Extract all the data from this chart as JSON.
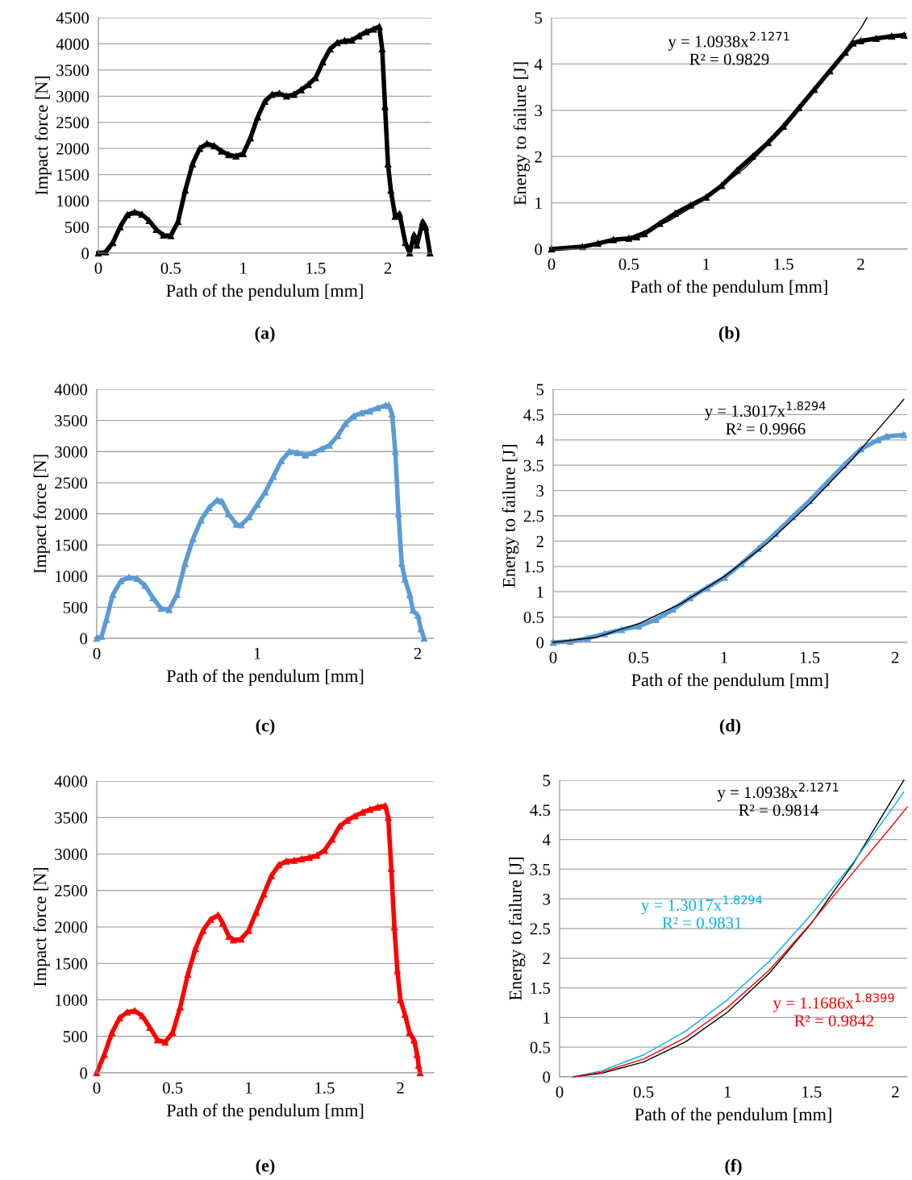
{
  "chart_data": [
    {
      "type": "line",
      "title": "(a)",
      "xlabel": "Path of the pendulum [mm]",
      "ylabel": "Impact force [N]",
      "xlim": [
        0,
        2.3
      ],
      "xticks": [
        0,
        0.5,
        1,
        1.5,
        2
      ],
      "ylim": [
        0,
        4500
      ],
      "yticks": [
        0,
        500,
        1000,
        1500,
        2000,
        2500,
        3000,
        3500,
        4000,
        4500
      ],
      "grid": "y",
      "marker": "triangle",
      "series": [
        {
          "color": "#000000",
          "x": [
            0,
            0.05,
            0.1,
            0.15,
            0.2,
            0.25,
            0.3,
            0.35,
            0.4,
            0.45,
            0.5,
            0.55,
            0.6,
            0.65,
            0.7,
            0.75,
            0.8,
            0.85,
            0.9,
            0.95,
            1.0,
            1.05,
            1.1,
            1.15,
            1.2,
            1.25,
            1.3,
            1.35,
            1.4,
            1.45,
            1.5,
            1.55,
            1.6,
            1.65,
            1.7,
            1.75,
            1.8,
            1.85,
            1.9,
            1.94,
            1.96,
            1.98,
            2.0,
            2.02,
            2.05,
            2.08,
            2.12,
            2.15,
            2.18,
            2.2,
            2.24,
            2.26,
            2.29
          ],
          "values": [
            0,
            20,
            200,
            500,
            730,
            780,
            740,
            620,
            450,
            340,
            330,
            600,
            1200,
            1700,
            2000,
            2090,
            2050,
            1950,
            1880,
            1850,
            1900,
            2200,
            2600,
            2900,
            3030,
            3050,
            3000,
            3030,
            3120,
            3220,
            3350,
            3650,
            3900,
            4020,
            4060,
            4070,
            4150,
            4230,
            4280,
            4330,
            3900,
            2800,
            1700,
            1200,
            700,
            750,
            200,
            0,
            350,
            150,
            600,
            500,
            0
          ]
        }
      ]
    },
    {
      "type": "line",
      "title": "(b)",
      "xlabel": "Path of the pendulum [mm]",
      "ylabel": "Energy to failure [J]",
      "xlim": [
        0,
        2.3
      ],
      "xticks": [
        0,
        0.5,
        1,
        1.5,
        2
      ],
      "ylim": [
        0,
        5
      ],
      "yticks": [
        0,
        1,
        2,
        3,
        4,
        5
      ],
      "grid": "y",
      "series": [
        {
          "color": "#000000",
          "marker": "triangle",
          "x": [
            0,
            0.2,
            0.3,
            0.4,
            0.5,
            0.55,
            0.6,
            0.7,
            0.8,
            0.9,
            1.0,
            1.1,
            1.2,
            1.3,
            1.4,
            1.5,
            1.6,
            1.7,
            1.8,
            1.9,
            1.95,
            2.0,
            2.1,
            2.2,
            2.28
          ],
          "values": [
            0,
            0.05,
            0.12,
            0.2,
            0.23,
            0.26,
            0.33,
            0.55,
            0.77,
            0.95,
            1.12,
            1.37,
            1.7,
            2.0,
            2.3,
            2.65,
            3.05,
            3.45,
            3.85,
            4.25,
            4.45,
            4.5,
            4.55,
            4.6,
            4.62
          ]
        },
        {
          "name": "y = 1.0938x$^{2.1271}$\nR² = 0.9829",
          "color": "#000000",
          "marker": "none",
          "x": [
            0,
            0.25,
            0.5,
            0.75,
            1,
            1.25,
            1.5,
            1.75,
            2,
            2.04
          ],
          "values": [
            0,
            0.06,
            0.25,
            0.59,
            1.09,
            1.75,
            2.59,
            3.6,
            4.77,
            5.0
          ]
        }
      ]
    },
    {
      "type": "line",
      "title": "(c)",
      "xlabel": "Path of the pendulum [mm]",
      "ylabel": "Impact force [N]",
      "xlim": [
        0,
        2.1
      ],
      "xticks": [
        0,
        1,
        2
      ],
      "ylim": [
        0,
        4000
      ],
      "yticks": [
        0,
        500,
        1000,
        1500,
        2000,
        2500,
        3000,
        3500,
        4000
      ],
      "grid": "y",
      "marker": "triangle",
      "series": [
        {
          "color": "#5b9bd5",
          "x": [
            0,
            0.03,
            0.06,
            0.1,
            0.15,
            0.2,
            0.25,
            0.3,
            0.35,
            0.4,
            0.45,
            0.5,
            0.55,
            0.6,
            0.65,
            0.7,
            0.75,
            0.78,
            0.82,
            0.87,
            0.9,
            0.95,
            1.0,
            1.05,
            1.1,
            1.15,
            1.2,
            1.25,
            1.3,
            1.35,
            1.4,
            1.45,
            1.5,
            1.55,
            1.6,
            1.65,
            1.7,
            1.75,
            1.8,
            1.82,
            1.84,
            1.86,
            1.88,
            1.9,
            1.92,
            1.95,
            1.97,
            2.0,
            2.02,
            2.04
          ],
          "values": [
            0,
            30,
            300,
            700,
            920,
            980,
            960,
            850,
            650,
            480,
            460,
            700,
            1200,
            1600,
            1900,
            2100,
            2220,
            2200,
            2000,
            1830,
            1820,
            1950,
            2150,
            2350,
            2600,
            2850,
            3000,
            2980,
            2940,
            2980,
            3040,
            3100,
            3250,
            3450,
            3570,
            3620,
            3650,
            3700,
            3740,
            3740,
            3600,
            3000,
            2000,
            1200,
            950,
            700,
            450,
            370,
            150,
            0
          ]
        }
      ]
    },
    {
      "type": "line",
      "title": "(d)",
      "xlabel": "Path of the pendulum [mm]",
      "ylabel": "Energy to failure [J]",
      "xlim": [
        0,
        2.07
      ],
      "xticks": [
        0,
        0.5,
        1,
        1.5,
        2
      ],
      "ylim": [
        0,
        5
      ],
      "yticks": [
        0,
        0.5,
        1,
        1.5,
        2,
        2.5,
        3,
        3.5,
        4,
        4.5,
        5
      ],
      "grid": "y",
      "series": [
        {
          "color": "#5b9bd5",
          "marker": "triangle",
          "x": [
            0,
            0.1,
            0.2,
            0.3,
            0.4,
            0.5,
            0.6,
            0.7,
            0.8,
            0.9,
            1.0,
            1.1,
            1.2,
            1.3,
            1.4,
            1.5,
            1.6,
            1.7,
            1.8,
            1.9,
            1.95,
            2.05
          ],
          "values": [
            0,
            0.02,
            0.08,
            0.17,
            0.25,
            0.32,
            0.45,
            0.65,
            0.88,
            1.08,
            1.28,
            1.55,
            1.85,
            2.15,
            2.48,
            2.8,
            3.15,
            3.5,
            3.82,
            4.0,
            4.07,
            4.1
          ]
        },
        {
          "name": "y = 1.3017x$^{1.8294}$\nR² = 0.9966",
          "color": "#000000",
          "marker": "none",
          "x": [
            0,
            0.25,
            0.5,
            0.75,
            1,
            1.25,
            1.5,
            1.75,
            2,
            2.05
          ],
          "values": [
            0,
            0.1,
            0.37,
            0.77,
            1.3,
            1.95,
            2.74,
            3.62,
            4.6,
            4.8
          ]
        }
      ]
    },
    {
      "type": "line",
      "title": "(e)",
      "xlabel": "Path of the pendulum [mm]",
      "ylabel": "Impact force [N]",
      "xlim": [
        0,
        2.22
      ],
      "xticks": [
        0,
        0.5,
        1,
        1.5,
        2
      ],
      "ylim": [
        0,
        4000
      ],
      "yticks": [
        0,
        500,
        1000,
        1500,
        2000,
        2500,
        3000,
        3500,
        4000
      ],
      "grid": "y",
      "marker": "triangle",
      "series": [
        {
          "color": "#ff0000",
          "x": [
            0,
            0.05,
            0.1,
            0.15,
            0.2,
            0.25,
            0.3,
            0.35,
            0.4,
            0.45,
            0.5,
            0.55,
            0.6,
            0.65,
            0.7,
            0.75,
            0.8,
            0.83,
            0.87,
            0.9,
            0.95,
            1.0,
            1.05,
            1.1,
            1.15,
            1.2,
            1.25,
            1.3,
            1.35,
            1.4,
            1.45,
            1.5,
            1.55,
            1.6,
            1.65,
            1.7,
            1.75,
            1.8,
            1.85,
            1.9,
            1.92,
            1.94,
            1.96,
            1.98,
            2.0,
            2.03,
            2.06,
            2.09,
            2.11,
            2.12,
            2.13
          ],
          "values": [
            0,
            250,
            550,
            750,
            830,
            850,
            780,
            620,
            450,
            420,
            550,
            900,
            1350,
            1700,
            1950,
            2100,
            2160,
            2050,
            1870,
            1820,
            1830,
            1950,
            2200,
            2450,
            2700,
            2850,
            2900,
            2910,
            2930,
            2950,
            2980,
            3050,
            3200,
            3380,
            3460,
            3520,
            3570,
            3610,
            3640,
            3660,
            3500,
            2800,
            2000,
            1400,
            1000,
            800,
            550,
            450,
            250,
            100,
            0
          ]
        }
      ]
    },
    {
      "type": "line",
      "title": "(f)",
      "xlabel": "Path of the pendulum [mm]",
      "ylabel": "Energy to failure [J]",
      "xlim": [
        0,
        2.07
      ],
      "xticks": [
        0,
        0.5,
        1,
        1.5,
        2
      ],
      "ylim": [
        0,
        5
      ],
      "yticks": [
        0,
        0.5,
        1,
        1.5,
        2,
        2.5,
        3,
        3.5,
        4,
        4.5,
        5
      ],
      "grid": "y",
      "marker": "none",
      "series": [
        {
          "name": "y = 1.0938x$^{2.1271}$\nR² = 0.9814",
          "color": "#000000",
          "x": [
            0.08,
            0.25,
            0.5,
            0.75,
            1,
            1.25,
            1.5,
            1.75,
            2.05
          ],
          "values": [
            0,
            0.06,
            0.25,
            0.59,
            1.09,
            1.75,
            2.59,
            3.6,
            5.0
          ]
        },
        {
          "name": "y = 1.3017x$^{1.8294}$\nR² = 0.9831",
          "color": "#00b0f0",
          "x": [
            0.08,
            0.25,
            0.5,
            0.75,
            1,
            1.25,
            1.5,
            1.75,
            2,
            2.05
          ],
          "values": [
            0,
            0.1,
            0.37,
            0.77,
            1.3,
            1.95,
            2.74,
            3.62,
            4.6,
            4.8
          ]
        },
        {
          "name": "y = 1.1686x$^{1.8399}$\nR² = 0.9842",
          "color": "#ff0000",
          "x": [
            0.08,
            0.25,
            0.5,
            0.75,
            1,
            1.25,
            1.5,
            1.75,
            2,
            2.07
          ],
          "values": [
            0,
            0.08,
            0.3,
            0.66,
            1.17,
            1.8,
            2.6,
            3.45,
            4.3,
            4.55
          ]
        }
      ]
    }
  ]
}
